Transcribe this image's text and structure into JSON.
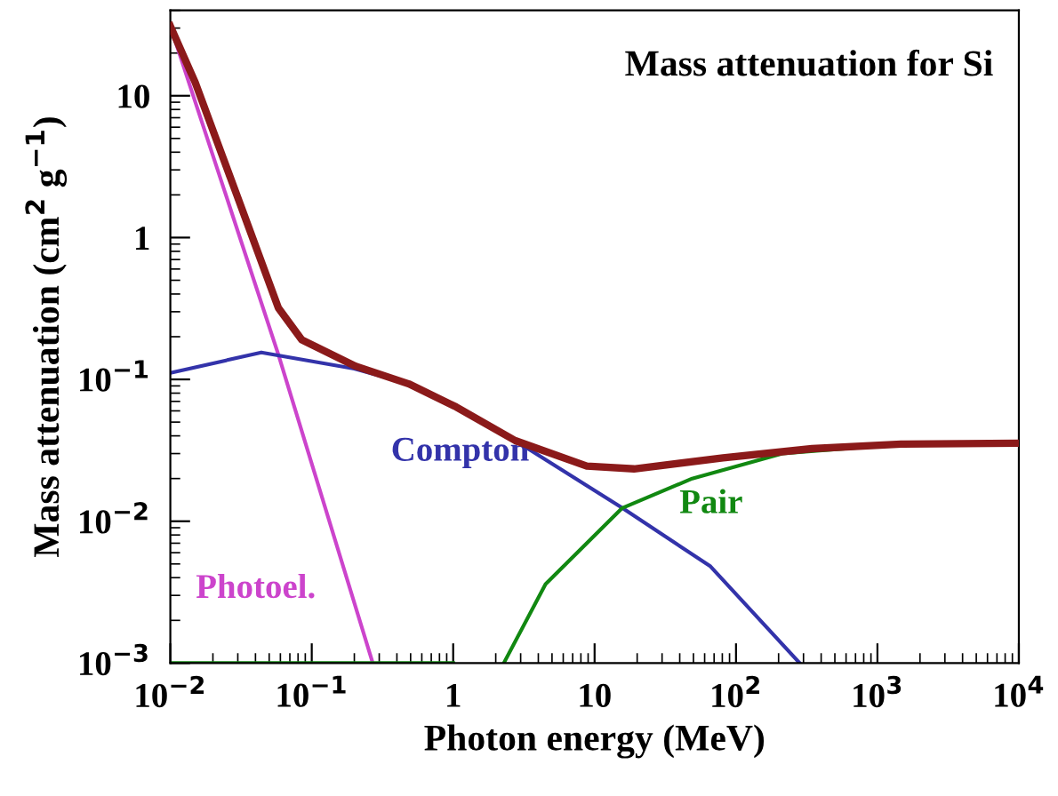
{
  "chart_data": {
    "type": "line",
    "title": "Mass attenuation for Si",
    "xlabel": "Photon energy (MeV)",
    "ylabel": "Mass attenuation (cm$^{2}$ g$^{−1}$)",
    "log": "xy",
    "legend": false,
    "grid": false,
    "xlim": [
      0.01,
      10000
    ],
    "ylim": [
      0.001,
      40
    ],
    "xticks": [
      {
        "value": 0.01,
        "label": "10$^{−2}$"
      },
      {
        "value": 0.1,
        "label": "10$^{−1}$"
      },
      1,
      10,
      {
        "value": 100,
        "label": "10$^{2}$"
      },
      {
        "value": 1000,
        "label": "10$^{3}$"
      },
      {
        "value": 10000,
        "label": "10$^{4}$"
      }
    ],
    "yticks": [
      {
        "value": 0.001,
        "label": "10$^{−3}$"
      },
      {
        "value": 0.01,
        "label": "10$^{−2}$"
      },
      {
        "value": 0.1,
        "label": "10$^{−1}$"
      },
      1,
      10
    ],
    "series": [
      {
        "name": "Photoel.",
        "color": "#cc44cc",
        "x": [
          0.01,
          0.058,
          0.27
        ],
        "values": [
          31,
          0.15,
          0.001
        ]
      },
      {
        "name": "Compton",
        "color": "#3333aa",
        "x": [
          0.01,
          0.044,
          0.2,
          0.485,
          1.05,
          2.75,
          15.7,
          66,
          282
        ],
        "values": [
          0.111,
          0.155,
          0.119,
          0.093,
          0.064,
          0.037,
          0.0124,
          0.0048,
          0.001
        ]
      },
      {
        "name": "Pair",
        "color": "#118811",
        "x": [
          0.01,
          1,
          1.5,
          2.28,
          4.5,
          15.7,
          49,
          213,
          1470,
          10000
        ],
        "values": [
          0.001,
          0.001,
          null,
          0.001,
          0.0036,
          0.0124,
          0.02,
          0.03,
          0.035,
          0.0355
        ]
      },
      {
        "color": "#8b1a1a",
        "x": [
          0.01,
          0.015,
          0.0295,
          0.058,
          0.085,
          0.204,
          0.485,
          1.05,
          2.75,
          8.8,
          19,
          81,
          345,
          1470,
          10000
        ],
        "values": [
          31,
          12.4,
          2.0,
          0.32,
          0.19,
          0.124,
          0.093,
          0.064,
          0.037,
          0.0245,
          0.0234,
          0.028,
          0.0325,
          0.035,
          0.0355
        ]
      }
    ]
  }
}
